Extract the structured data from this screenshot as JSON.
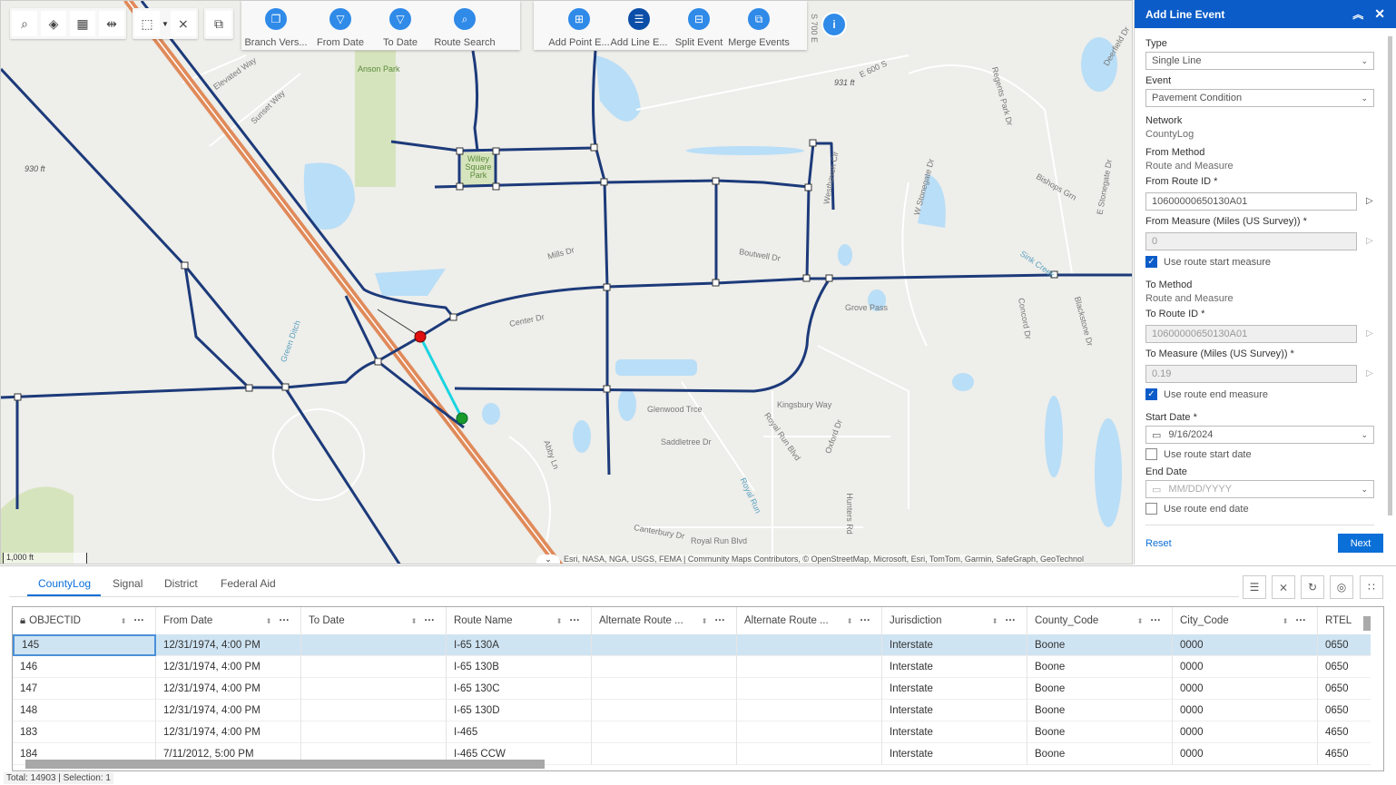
{
  "map": {
    "toolbar_left": [
      {
        "icon": "search-icon",
        "glyph": "⌕"
      },
      {
        "icon": "layers-icon",
        "glyph": "◈"
      },
      {
        "icon": "grid-select-icon",
        "glyph": "▦"
      },
      {
        "icon": "measure-icon",
        "glyph": "⇹"
      }
    ],
    "select_tool": {
      "icon": "select-icon",
      "glyph": "⬚"
    },
    "clear_selection": {
      "icon": "clear-selection-icon",
      "glyph": "⨯"
    },
    "extra_tool": {
      "icon": "network-tool-icon",
      "glyph": "⧉"
    },
    "group1": [
      {
        "label": "Branch Vers...",
        "icon": "branch-version-icon",
        "glyph": "❐"
      },
      {
        "label": "From Date",
        "icon": "filter-icon",
        "glyph": "▽"
      },
      {
        "label": "To Date",
        "icon": "filter-icon",
        "glyph": "▽"
      },
      {
        "label": "Route Search",
        "icon": "route-search-icon",
        "glyph": "⌕"
      }
    ],
    "group2": [
      {
        "label": "Add Point E...",
        "icon": "add-point-event-icon",
        "glyph": "⊞"
      },
      {
        "label": "Add Line E...",
        "icon": "add-line-event-icon",
        "glyph": "☰",
        "active": true
      },
      {
        "label": "Split Event",
        "icon": "split-event-icon",
        "glyph": "⊟"
      },
      {
        "label": "Merge Events",
        "icon": "merge-events-icon",
        "glyph": "⧉"
      }
    ],
    "labels": [
      "Anson Park",
      "Elevated Way",
      "Sunset Way",
      "Willey Square Park",
      "930 ft",
      "931 ft",
      "E 600 S",
      "Center Dr",
      "Mills Dr",
      "Boutwell Dr",
      "Grove Pass",
      "Kingsbury Way",
      "Glenwood Trce",
      "Saddletree Dr",
      "Abby Ln",
      "Royal Run Blvd",
      "Oxford Dr",
      "Canterbury Dr",
      "Royal Run Blvd",
      "Hunters Rd",
      "Westhaven Cir",
      "W Stonegate Dr",
      "E Stonegate Dr",
      "Bishops Grn",
      "Regents Park Dr",
      "Sink Creek",
      "Concord Dr",
      "Blackstone Dr",
      "Green Ditch",
      "Deerfield Dr",
      "S 700 E",
      "Royal Run"
    ],
    "scale": "1,000 ft",
    "attribution": "Esri, NASA, NGA, USGS, FEMA | Community Maps Contributors, © OpenStreetMap, Microsoft, Esri, TomTom, Garmin, SafeGraph, GeoTechnol",
    "colors": {
      "route": "#1c3a7a",
      "highway": "#e08a5a",
      "selected": "#19d4e0",
      "start": "#e01010",
      "end": "#1a9a2a"
    }
  },
  "panel": {
    "title": "Add Line Event",
    "type_label": "Type",
    "type_value": "Single Line",
    "event_label": "Event",
    "event_value": "Pavement Condition",
    "network_label": "Network",
    "network_value": "CountyLog",
    "from_method_label": "From Method",
    "from_method_value": "Route and Measure",
    "from_route_label": "From Route ID *",
    "from_route_value": "10600000650130A01",
    "from_measure_label": "From Measure (Miles (US Survey)) *",
    "from_measure_value": "0",
    "use_start_measure": "Use route start measure",
    "use_start_measure_checked": true,
    "to_method_label": "To Method",
    "to_method_value": "Route and Measure",
    "to_route_label": "To Route ID *",
    "to_route_value": "10600000650130A01",
    "to_measure_label": "To Measure (Miles (US Survey)) *",
    "to_measure_value": "0.19",
    "use_end_measure": "Use route end measure",
    "use_end_measure_checked": true,
    "start_date_label": "Start Date *",
    "start_date_value": "9/16/2024",
    "use_start_date": "Use route start date",
    "use_start_date_checked": false,
    "end_date_label": "End Date",
    "end_date_placeholder": "MM/DD/YYYY",
    "use_end_date": "Use route end date",
    "use_end_date_checked": false,
    "reset": "Reset",
    "next": "Next"
  },
  "table": {
    "tabs": [
      "CountyLog",
      "Signal",
      "District",
      "Federal Aid"
    ],
    "active_tab": "CountyLog",
    "columns": [
      "OBJECTID",
      "From Date",
      "To Date",
      "Route Name",
      "Alternate Route ...",
      "Alternate Route ...",
      "Jurisdiction",
      "County_Code",
      "City_Code",
      "RTEL"
    ],
    "rows": [
      [
        "145",
        "12/31/1974, 4:00 PM",
        "",
        "I-65 130A",
        "",
        "",
        "Interstate",
        "Boone",
        "0000",
        "0650"
      ],
      [
        "146",
        "12/31/1974, 4:00 PM",
        "",
        "I-65 130B",
        "",
        "",
        "Interstate",
        "Boone",
        "0000",
        "0650"
      ],
      [
        "147",
        "12/31/1974, 4:00 PM",
        "",
        "I-65 130C",
        "",
        "",
        "Interstate",
        "Boone",
        "0000",
        "0650"
      ],
      [
        "148",
        "12/31/1974, 4:00 PM",
        "",
        "I-65 130D",
        "",
        "",
        "Interstate",
        "Boone",
        "0000",
        "0650"
      ],
      [
        "183",
        "12/31/1974, 4:00 PM",
        "",
        "I-465",
        "",
        "",
        "Interstate",
        "Boone",
        "0000",
        "4650"
      ],
      [
        "184",
        "7/11/2012, 5:00 PM",
        "",
        "I-465 CCW",
        "",
        "",
        "Interstate",
        "Boone",
        "0000",
        "4650"
      ]
    ],
    "selected_row": 0,
    "tools": [
      {
        "icon": "show-selection-icon",
        "glyph": "☰"
      },
      {
        "icon": "clear-selection-icon",
        "glyph": "⨯"
      },
      {
        "icon": "refresh-icon",
        "glyph": "↻"
      },
      {
        "icon": "filter-view-icon",
        "glyph": "◎"
      },
      {
        "icon": "options-icon",
        "glyph": "∷"
      }
    ],
    "status": "Total: 14903 | Selection: 1"
  }
}
